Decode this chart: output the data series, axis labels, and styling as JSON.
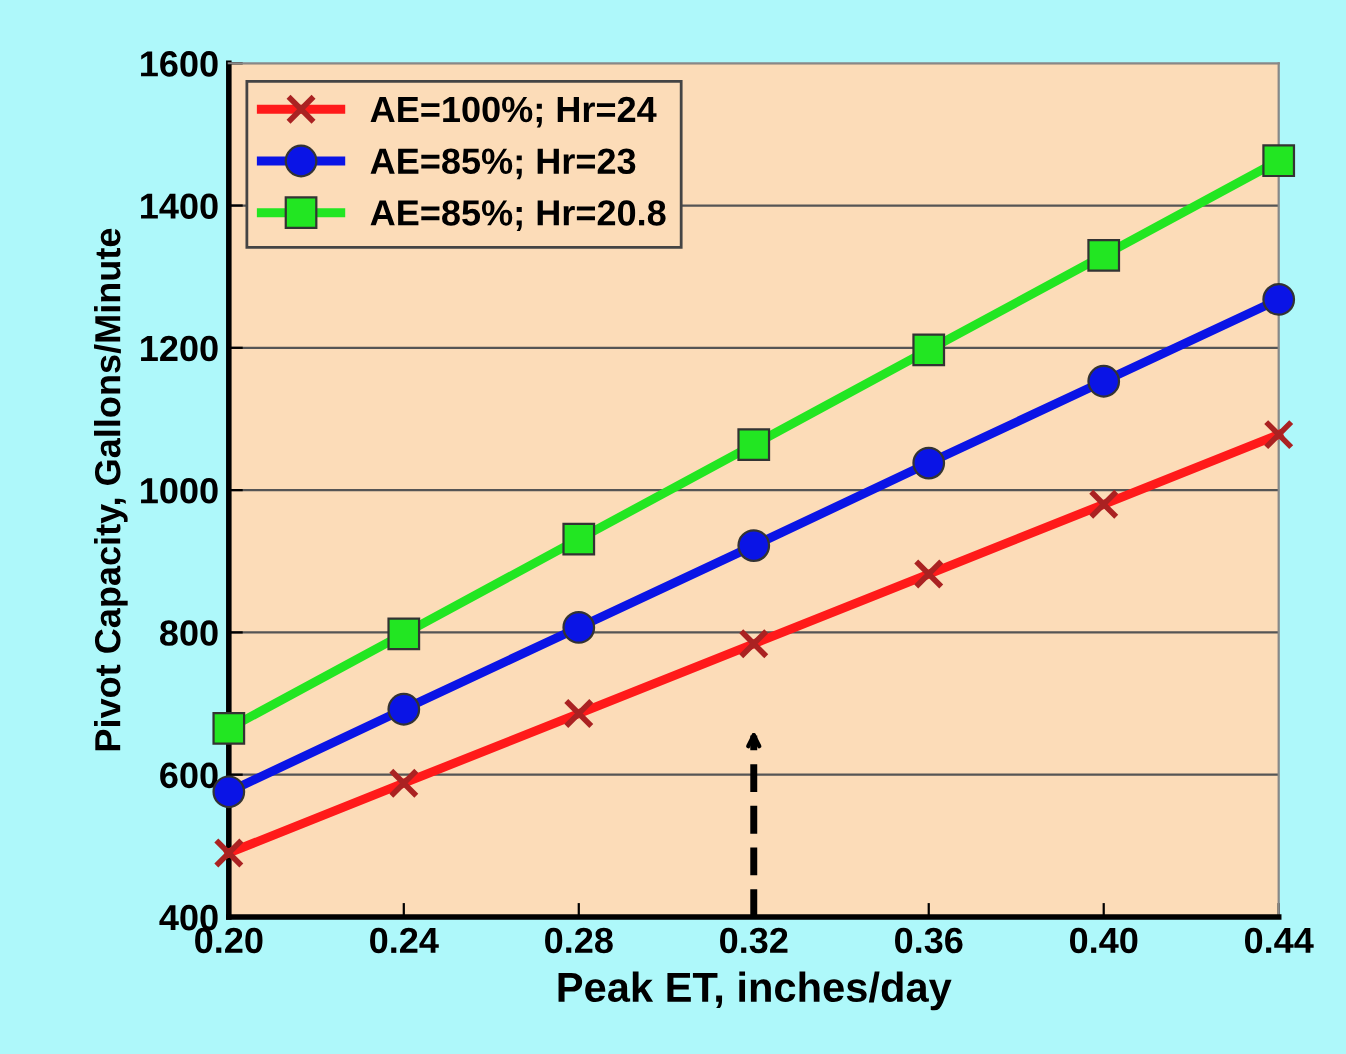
{
  "chart_data": {
    "type": "line",
    "xlabel": "Peak ET, inches/day",
    "ylabel": "Pivot Capacity, Gallons/Minute",
    "x": [
      0.2,
      0.24,
      0.28,
      0.32,
      0.36,
      0.4,
      0.44
    ],
    "series": [
      {
        "name": "AE=100%; Hr=24",
        "color": "#ff1a1a",
        "marker": "cross",
        "values": [
          490,
          588,
          686,
          784,
          882,
          980,
          1078
        ]
      },
      {
        "name": "AE=85%; Hr=23",
        "color": "#0a14e6",
        "marker": "circle",
        "values": [
          576,
          692,
          807,
          922,
          1038,
          1153,
          1268
        ]
      },
      {
        "name": "AE=85%; Hr=20.8",
        "color": "#22e622",
        "marker": "square",
        "values": [
          665,
          798,
          931,
          1064,
          1197,
          1330,
          1463
        ]
      }
    ],
    "xlim": [
      0.2,
      0.44
    ],
    "xticks": [
      {
        "value": 0.2,
        "label": "0.20"
      },
      {
        "value": 0.24,
        "label": "0.24"
      },
      {
        "value": 0.28,
        "label": "0.28"
      },
      {
        "value": 0.32,
        "label": "0.32"
      },
      {
        "value": 0.36,
        "label": "0.36"
      },
      {
        "value": 0.4,
        "label": "0.40"
      },
      {
        "value": 0.44,
        "label": "0.44"
      }
    ],
    "ylim": [
      400,
      1600
    ],
    "yticks": [
      400,
      600,
      800,
      1000,
      1200,
      1400,
      1600
    ],
    "grid": "y",
    "legend": "top left",
    "line_style": "solid"
  }
}
